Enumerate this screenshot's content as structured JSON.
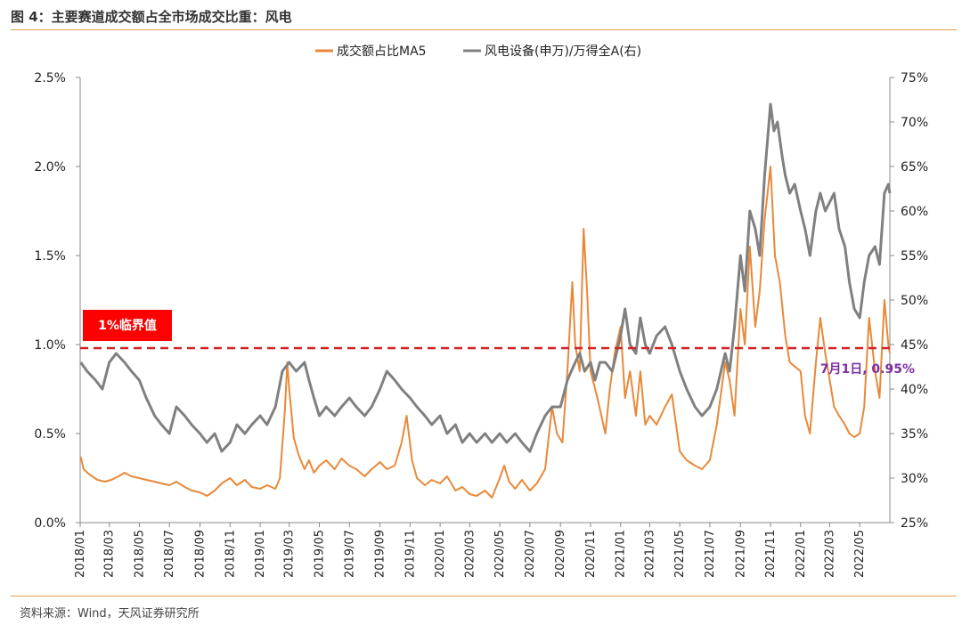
{
  "header": {
    "title": "图 4：主要赛道成交额占全市场成交比重：风电"
  },
  "footer": {
    "source": "资料来源：Wind，天风证券研究所"
  },
  "colors": {
    "orange": "#E8893A",
    "gray": "#808080",
    "threshold": "#D42020",
    "badge": "#FF0000",
    "annotation": "#7B2FA0",
    "rule": "#E0A050"
  },
  "chart_data": {
    "type": "line",
    "title": "",
    "legend": {
      "placement": "top-center",
      "entries": [
        "成交额占比MA5",
        "风电设备(申万)/万得全A(右)"
      ]
    },
    "x_ticks": [
      "2018/01",
      "2018/03",
      "2018/05",
      "2018/07",
      "2018/09",
      "2018/11",
      "2019/01",
      "2019/03",
      "2019/05",
      "2019/07",
      "2019/09",
      "2019/11",
      "2020/01",
      "2020/03",
      "2020/05",
      "2020/07",
      "2020/09",
      "2020/11",
      "2021/01",
      "2021/03",
      "2021/05",
      "2021/07",
      "2021/09",
      "2021/11",
      "2022/01",
      "2022/03",
      "2022/05"
    ],
    "x_range": [
      "2018-01-01",
      "2022-07-01"
    ],
    "y_left": {
      "range": [
        0,
        0.025
      ],
      "ticks": [
        "0.0%",
        "0.5%",
        "1.0%",
        "1.5%",
        "2.0%",
        "2.5%"
      ]
    },
    "y_right": {
      "range": [
        0.25,
        0.75
      ],
      "ticks": [
        "25%",
        "30%",
        "35%",
        "40%",
        "45%",
        "50%",
        "55%",
        "60%",
        "65%",
        "70%",
        "75%"
      ]
    },
    "threshold": {
      "value": 0.0098,
      "label": "1%临界值"
    },
    "annotation": {
      "label": "7月1日, 0.95%",
      "x": "2022-07-01",
      "value": 0.0095
    },
    "series": [
      {
        "name": "成交额占比MA5",
        "axis": "left",
        "points": [
          [
            "2018-01-02",
            0.0037
          ],
          [
            "2018-01-08",
            0.003
          ],
          [
            "2018-01-20",
            0.0027
          ],
          [
            "2018-02-05",
            0.0024
          ],
          [
            "2018-02-20",
            0.0023
          ],
          [
            "2018-03-05",
            0.0024
          ],
          [
            "2018-03-20",
            0.0026
          ],
          [
            "2018-04-01",
            0.0028
          ],
          [
            "2018-04-15",
            0.0026
          ],
          [
            "2018-05-01",
            0.0025
          ],
          [
            "2018-05-15",
            0.0024
          ],
          [
            "2018-06-01",
            0.0023
          ],
          [
            "2018-06-15",
            0.0022
          ],
          [
            "2018-07-01",
            0.0021
          ],
          [
            "2018-07-15",
            0.0023
          ],
          [
            "2018-08-01",
            0.002
          ],
          [
            "2018-08-15",
            0.0018
          ],
          [
            "2018-09-01",
            0.0017
          ],
          [
            "2018-09-15",
            0.0015
          ],
          [
            "2018-10-01",
            0.0018
          ],
          [
            "2018-10-15",
            0.0022
          ],
          [
            "2018-11-01",
            0.0025
          ],
          [
            "2018-11-15",
            0.0021
          ],
          [
            "2018-12-01",
            0.0024
          ],
          [
            "2018-12-15",
            0.002
          ],
          [
            "2019-01-01",
            0.0019
          ],
          [
            "2019-01-15",
            0.0021
          ],
          [
            "2019-02-01",
            0.0019
          ],
          [
            "2019-02-10",
            0.0025
          ],
          [
            "2019-02-20",
            0.0062
          ],
          [
            "2019-02-25",
            0.009
          ],
          [
            "2019-03-01",
            0.0075
          ],
          [
            "2019-03-10",
            0.0048
          ],
          [
            "2019-03-20",
            0.0038
          ],
          [
            "2019-04-01",
            0.003
          ],
          [
            "2019-04-10",
            0.0035
          ],
          [
            "2019-04-20",
            0.0028
          ],
          [
            "2019-05-01",
            0.0032
          ],
          [
            "2019-05-15",
            0.0035
          ],
          [
            "2019-06-01",
            0.003
          ],
          [
            "2019-06-15",
            0.0036
          ],
          [
            "2019-07-01",
            0.0032
          ],
          [
            "2019-07-15",
            0.003
          ],
          [
            "2019-08-01",
            0.0026
          ],
          [
            "2019-08-15",
            0.003
          ],
          [
            "2019-09-01",
            0.0034
          ],
          [
            "2019-09-15",
            0.003
          ],
          [
            "2019-10-01",
            0.0032
          ],
          [
            "2019-10-15",
            0.0045
          ],
          [
            "2019-10-25",
            0.006
          ],
          [
            "2019-11-05",
            0.0035
          ],
          [
            "2019-11-15",
            0.0025
          ],
          [
            "2019-12-01",
            0.0021
          ],
          [
            "2019-12-15",
            0.0024
          ],
          [
            "2020-01-01",
            0.0022
          ],
          [
            "2020-01-15",
            0.0026
          ],
          [
            "2020-02-01",
            0.0018
          ],
          [
            "2020-02-15",
            0.002
          ],
          [
            "2020-03-01",
            0.0016
          ],
          [
            "2020-03-15",
            0.0015
          ],
          [
            "2020-04-01",
            0.0018
          ],
          [
            "2020-04-15",
            0.0014
          ],
          [
            "2020-05-01",
            0.0025
          ],
          [
            "2020-05-10",
            0.0032
          ],
          [
            "2020-05-20",
            0.0023
          ],
          [
            "2020-06-01",
            0.0019
          ],
          [
            "2020-06-15",
            0.0024
          ],
          [
            "2020-07-01",
            0.0018
          ],
          [
            "2020-07-15",
            0.0022
          ],
          [
            "2020-08-01",
            0.003
          ],
          [
            "2020-08-15",
            0.0065
          ],
          [
            "2020-08-25",
            0.005
          ],
          [
            "2020-09-05",
            0.0045
          ],
          [
            "2020-09-15",
            0.0085
          ],
          [
            "2020-09-25",
            0.0135
          ],
          [
            "2020-10-01",
            0.01
          ],
          [
            "2020-10-10",
            0.0085
          ],
          [
            "2020-10-18",
            0.0165
          ],
          [
            "2020-10-25",
            0.013
          ],
          [
            "2020-11-01",
            0.0085
          ],
          [
            "2020-11-15",
            0.007
          ],
          [
            "2020-12-01",
            0.005
          ],
          [
            "2020-12-10",
            0.0075
          ],
          [
            "2020-12-20",
            0.0095
          ],
          [
            "2021-01-01",
            0.011
          ],
          [
            "2021-01-10",
            0.007
          ],
          [
            "2021-01-20",
            0.0085
          ],
          [
            "2021-02-01",
            0.006
          ],
          [
            "2021-02-10",
            0.0085
          ],
          [
            "2021-02-20",
            0.0055
          ],
          [
            "2021-03-01",
            0.006
          ],
          [
            "2021-03-15",
            0.0055
          ],
          [
            "2021-04-01",
            0.0065
          ],
          [
            "2021-04-15",
            0.0072
          ],
          [
            "2021-05-01",
            0.004
          ],
          [
            "2021-05-15",
            0.0035
          ],
          [
            "2021-06-01",
            0.0032
          ],
          [
            "2021-06-15",
            0.003
          ],
          [
            "2021-07-01",
            0.0035
          ],
          [
            "2021-07-15",
            0.0055
          ],
          [
            "2021-08-01",
            0.009
          ],
          [
            "2021-08-10",
            0.008
          ],
          [
            "2021-08-20",
            0.006
          ],
          [
            "2021-09-01",
            0.012
          ],
          [
            "2021-09-10",
            0.01
          ],
          [
            "2021-09-20",
            0.0155
          ],
          [
            "2021-10-01",
            0.011
          ],
          [
            "2021-10-10",
            0.013
          ],
          [
            "2021-10-20",
            0.017
          ],
          [
            "2021-11-01",
            0.02
          ],
          [
            "2021-11-10",
            0.015
          ],
          [
            "2021-11-20",
            0.0135
          ],
          [
            "2021-12-01",
            0.0105
          ],
          [
            "2021-12-10",
            0.009
          ],
          [
            "2022-01-01",
            0.0085
          ],
          [
            "2022-01-10",
            0.006
          ],
          [
            "2022-01-20",
            0.005
          ],
          [
            "2022-02-01",
            0.009
          ],
          [
            "2022-02-10",
            0.0115
          ],
          [
            "2022-02-20",
            0.0095
          ],
          [
            "2022-03-01",
            0.008
          ],
          [
            "2022-03-10",
            0.0065
          ],
          [
            "2022-03-20",
            0.006
          ],
          [
            "2022-04-01",
            0.0055
          ],
          [
            "2022-04-10",
            0.005
          ],
          [
            "2022-04-20",
            0.0048
          ],
          [
            "2022-05-01",
            0.005
          ],
          [
            "2022-05-10",
            0.0065
          ],
          [
            "2022-05-20",
            0.0115
          ],
          [
            "2022-06-01",
            0.0085
          ],
          [
            "2022-06-10",
            0.007
          ],
          [
            "2022-06-20",
            0.0125
          ],
          [
            "2022-06-28",
            0.01
          ],
          [
            "2022-07-01",
            0.0095
          ]
        ]
      },
      {
        "name": "风电设备(申万)/万得全A(右)",
        "axis": "right",
        "points": [
          [
            "2018-01-02",
            0.43
          ],
          [
            "2018-01-15",
            0.42
          ],
          [
            "2018-02-01",
            0.41
          ],
          [
            "2018-02-15",
            0.4
          ],
          [
            "2018-03-01",
            0.43
          ],
          [
            "2018-03-15",
            0.44
          ],
          [
            "2018-04-01",
            0.43
          ],
          [
            "2018-04-15",
            0.42
          ],
          [
            "2018-05-01",
            0.41
          ],
          [
            "2018-05-15",
            0.39
          ],
          [
            "2018-06-01",
            0.37
          ],
          [
            "2018-06-15",
            0.36
          ],
          [
            "2018-07-01",
            0.35
          ],
          [
            "2018-07-15",
            0.38
          ],
          [
            "2018-08-01",
            0.37
          ],
          [
            "2018-08-15",
            0.36
          ],
          [
            "2018-09-01",
            0.35
          ],
          [
            "2018-09-15",
            0.34
          ],
          [
            "2018-10-01",
            0.35
          ],
          [
            "2018-10-15",
            0.33
          ],
          [
            "2018-11-01",
            0.34
          ],
          [
            "2018-11-15",
            0.36
          ],
          [
            "2018-12-01",
            0.35
          ],
          [
            "2018-12-15",
            0.36
          ],
          [
            "2019-01-01",
            0.37
          ],
          [
            "2019-01-15",
            0.36
          ],
          [
            "2019-02-01",
            0.38
          ],
          [
            "2019-02-15",
            0.42
          ],
          [
            "2019-03-01",
            0.43
          ],
          [
            "2019-03-15",
            0.42
          ],
          [
            "2019-04-01",
            0.43
          ],
          [
            "2019-04-10",
            0.41
          ],
          [
            "2019-04-20",
            0.39
          ],
          [
            "2019-05-01",
            0.37
          ],
          [
            "2019-05-15",
            0.38
          ],
          [
            "2019-06-01",
            0.37
          ],
          [
            "2019-06-15",
            0.38
          ],
          [
            "2019-07-01",
            0.39
          ],
          [
            "2019-07-15",
            0.38
          ],
          [
            "2019-08-01",
            0.37
          ],
          [
            "2019-08-15",
            0.38
          ],
          [
            "2019-09-01",
            0.4
          ],
          [
            "2019-09-15",
            0.42
          ],
          [
            "2019-10-01",
            0.41
          ],
          [
            "2019-10-15",
            0.4
          ],
          [
            "2019-11-01",
            0.39
          ],
          [
            "2019-11-15",
            0.38
          ],
          [
            "2019-12-01",
            0.37
          ],
          [
            "2019-12-15",
            0.36
          ],
          [
            "2020-01-01",
            0.37
          ],
          [
            "2020-01-15",
            0.35
          ],
          [
            "2020-02-01",
            0.36
          ],
          [
            "2020-02-15",
            0.34
          ],
          [
            "2020-03-01",
            0.35
          ],
          [
            "2020-03-15",
            0.34
          ],
          [
            "2020-04-01",
            0.35
          ],
          [
            "2020-04-15",
            0.34
          ],
          [
            "2020-05-01",
            0.35
          ],
          [
            "2020-05-15",
            0.34
          ],
          [
            "2020-06-01",
            0.35
          ],
          [
            "2020-06-15",
            0.34
          ],
          [
            "2020-07-01",
            0.33
          ],
          [
            "2020-07-15",
            0.35
          ],
          [
            "2020-08-01",
            0.37
          ],
          [
            "2020-08-15",
            0.38
          ],
          [
            "2020-09-01",
            0.38
          ],
          [
            "2020-09-15",
            0.41
          ],
          [
            "2020-10-01",
            0.43
          ],
          [
            "2020-10-10",
            0.44
          ],
          [
            "2020-10-20",
            0.42
          ],
          [
            "2020-11-01",
            0.43
          ],
          [
            "2020-11-10",
            0.41
          ],
          [
            "2020-11-20",
            0.43
          ],
          [
            "2020-12-01",
            0.43
          ],
          [
            "2020-12-15",
            0.42
          ],
          [
            "2021-01-01",
            0.46
          ],
          [
            "2021-01-10",
            0.49
          ],
          [
            "2021-01-20",
            0.45
          ],
          [
            "2021-02-01",
            0.44
          ],
          [
            "2021-02-10",
            0.48
          ],
          [
            "2021-02-20",
            0.45
          ],
          [
            "2021-03-01",
            0.44
          ],
          [
            "2021-03-15",
            0.46
          ],
          [
            "2021-04-01",
            0.47
          ],
          [
            "2021-04-15",
            0.45
          ],
          [
            "2021-05-01",
            0.42
          ],
          [
            "2021-05-15",
            0.4
          ],
          [
            "2021-06-01",
            0.38
          ],
          [
            "2021-06-15",
            0.37
          ],
          [
            "2021-07-01",
            0.38
          ],
          [
            "2021-07-15",
            0.4
          ],
          [
            "2021-08-01",
            0.44
          ],
          [
            "2021-08-10",
            0.42
          ],
          [
            "2021-08-20",
            0.47
          ],
          [
            "2021-09-01",
            0.55
          ],
          [
            "2021-09-10",
            0.51
          ],
          [
            "2021-09-20",
            0.6
          ],
          [
            "2021-10-01",
            0.58
          ],
          [
            "2021-10-10",
            0.55
          ],
          [
            "2021-10-20",
            0.64
          ],
          [
            "2021-11-01",
            0.72
          ],
          [
            "2021-11-08",
            0.69
          ],
          [
            "2021-11-15",
            0.7
          ],
          [
            "2021-11-25",
            0.66
          ],
          [
            "2021-12-01",
            0.64
          ],
          [
            "2021-12-10",
            0.62
          ],
          [
            "2021-12-20",
            0.63
          ],
          [
            "2022-01-01",
            0.6
          ],
          [
            "2022-01-10",
            0.58
          ],
          [
            "2022-01-20",
            0.55
          ],
          [
            "2022-02-01",
            0.6
          ],
          [
            "2022-02-10",
            0.62
          ],
          [
            "2022-02-20",
            0.6
          ],
          [
            "2022-03-01",
            0.61
          ],
          [
            "2022-03-10",
            0.62
          ],
          [
            "2022-03-20",
            0.58
          ],
          [
            "2022-04-01",
            0.56
          ],
          [
            "2022-04-10",
            0.52
          ],
          [
            "2022-04-20",
            0.49
          ],
          [
            "2022-05-01",
            0.48
          ],
          [
            "2022-05-10",
            0.52
          ],
          [
            "2022-05-20",
            0.55
          ],
          [
            "2022-06-01",
            0.56
          ],
          [
            "2022-06-10",
            0.54
          ],
          [
            "2022-06-20",
            0.62
          ],
          [
            "2022-06-28",
            0.63
          ],
          [
            "2022-07-01",
            0.62
          ]
        ]
      }
    ]
  }
}
